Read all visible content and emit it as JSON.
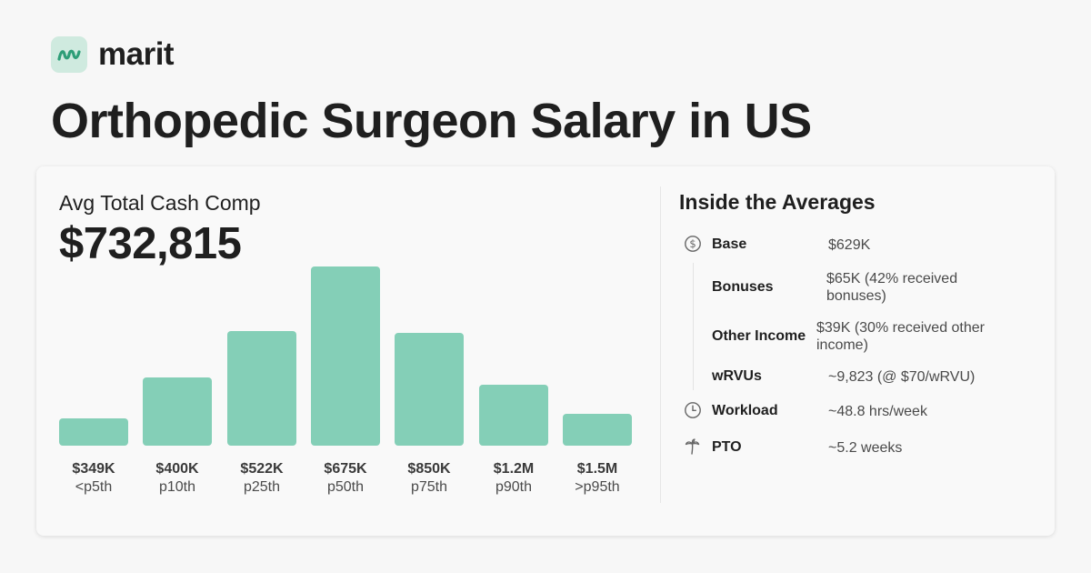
{
  "brand": {
    "name": "marit",
    "accent": "#2e9e78",
    "logo_bg": "#cfeadf"
  },
  "title": "Orthopedic Surgeon Salary in US",
  "summary": {
    "label": "Avg Total Cash Comp",
    "value": "$732,815"
  },
  "chart_data": {
    "type": "bar",
    "categories": [
      "<p5th",
      "p10th",
      "p25th",
      "p50th",
      "p75th",
      "p90th",
      ">p95th"
    ],
    "value_labels": [
      "$349K",
      "$400K",
      "$522K",
      "$675K",
      "$850K",
      "$1.2M",
      "$1.5M"
    ],
    "values": [
      0.15,
      0.38,
      0.64,
      1.0,
      0.63,
      0.34,
      0.18
    ],
    "bar_color": "#84cfb7"
  },
  "inside": {
    "title": "Inside the Averages",
    "rows": [
      {
        "label": "Base",
        "value": "$629K",
        "icon": "dollar-circle-icon"
      },
      {
        "label": "Bonuses",
        "value": "$65K (42% received bonuses)"
      },
      {
        "label": "Other Income",
        "value": "$39K (30% received other income)"
      },
      {
        "label": "wRVUs",
        "value": "~9,823 (@ $70/wRVU)"
      },
      {
        "label": "Workload",
        "value": "~48.8 hrs/week",
        "icon": "clock-icon"
      },
      {
        "label": "PTO",
        "value": "~5.2 weeks",
        "icon": "palm-tree-icon"
      }
    ]
  }
}
